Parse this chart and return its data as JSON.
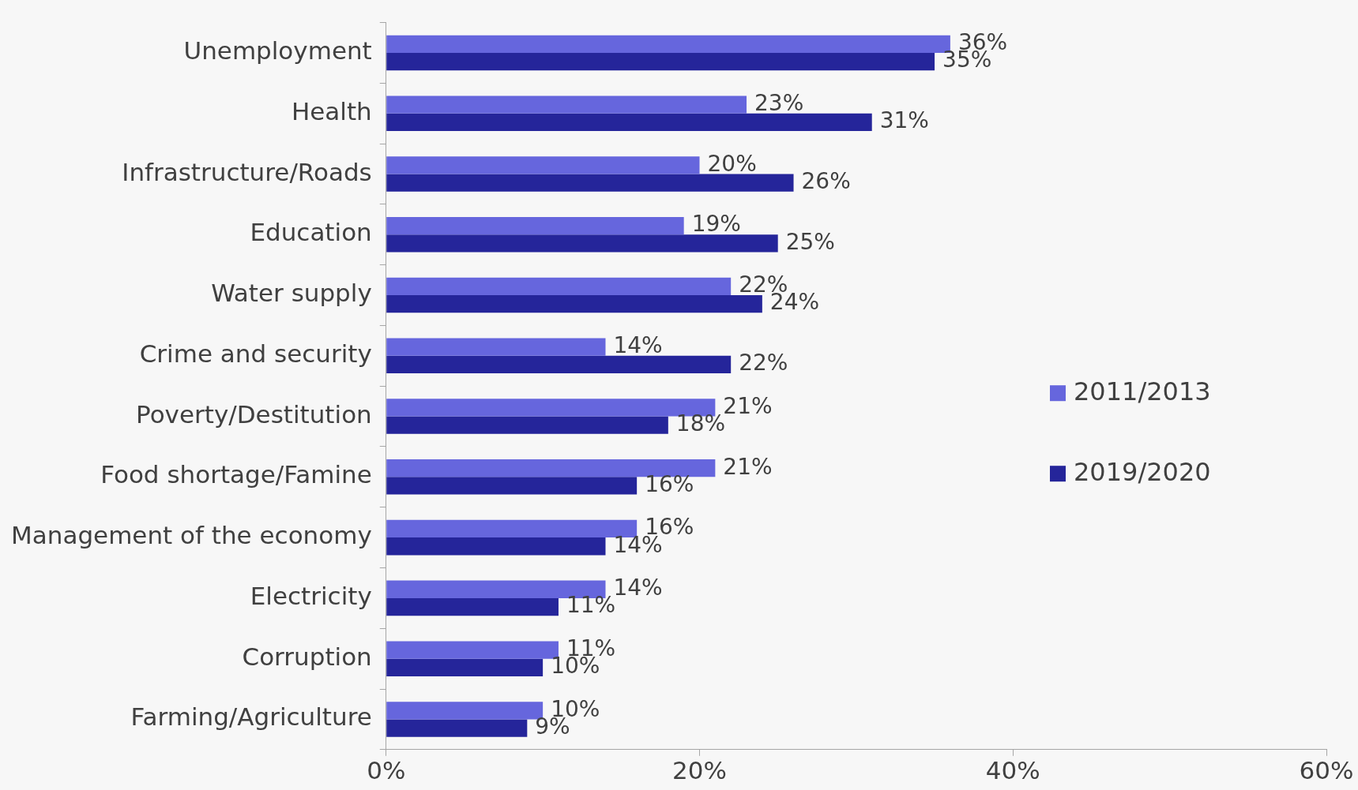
{
  "chart_data": {
    "type": "bar",
    "orientation": "horizontal",
    "categories": [
      "Unemployment",
      "Health",
      "Infrastructure/Roads",
      "Education",
      "Water supply",
      "Crime and security",
      "Poverty/Destitution",
      "Food shortage/Famine",
      "Management of the economy",
      "Electricity",
      "Corruption",
      "Farming/Agriculture"
    ],
    "series": [
      {
        "name": "2011/2013",
        "color": "#6666dd",
        "values": [
          36,
          23,
          20,
          19,
          22,
          14,
          21,
          21,
          16,
          14,
          11,
          10
        ],
        "value_labels": [
          "36%",
          "23%",
          "20%",
          "19%",
          "22%",
          "14%",
          "21%",
          "21%",
          "16%",
          "14%",
          "11%",
          "10%"
        ]
      },
      {
        "name": "2019/2020",
        "color": "#25259a",
        "values": [
          35,
          31,
          26,
          25,
          24,
          22,
          18,
          16,
          14,
          11,
          10,
          9
        ],
        "value_labels": [
          "35%",
          "31%",
          "26%",
          "25%",
          "24%",
          "22%",
          "18%",
          "16%",
          "14%",
          "11%",
          "10%",
          "9%"
        ]
      }
    ],
    "xlim": [
      0,
      60
    ],
    "xticks": [
      {
        "value": 0,
        "label": "0%"
      },
      {
        "value": 20,
        "label": "20%"
      },
      {
        "value": 40,
        "label": "40%"
      },
      {
        "value": 60,
        "label": "60%"
      }
    ],
    "grid": false,
    "legend": "right"
  }
}
